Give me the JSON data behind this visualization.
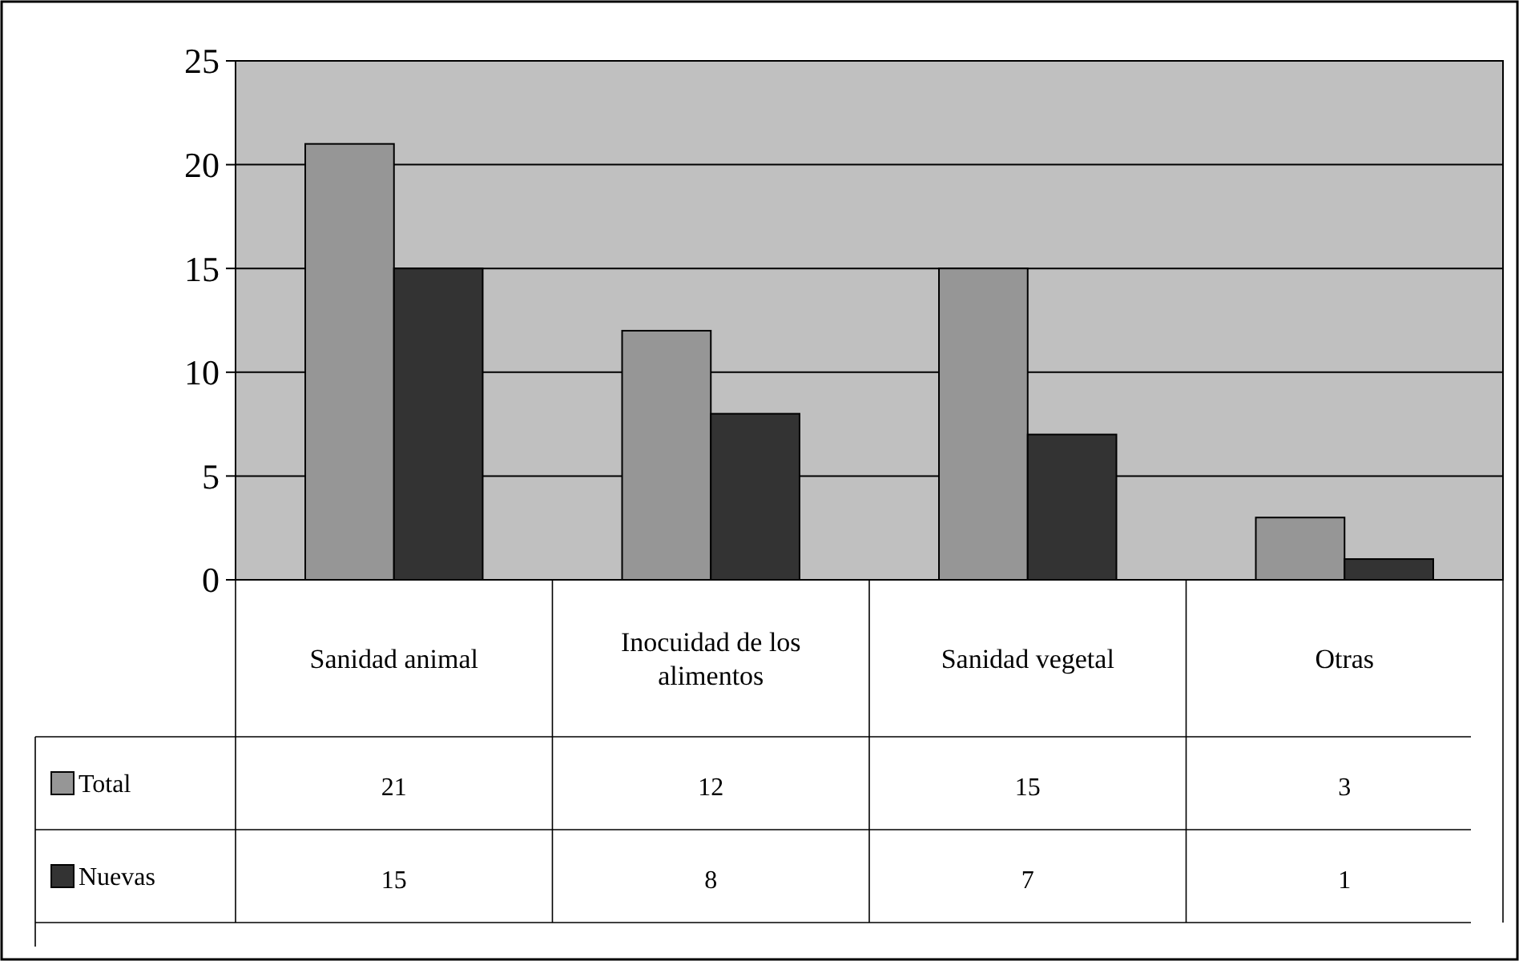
{
  "chart_data": {
    "type": "bar",
    "categories": [
      "Sanidad animal",
      "Inocuidad de los alimentos",
      "Sanidad vegetal",
      "Otras"
    ],
    "series": [
      {
        "name": "Total",
        "color": "#969696",
        "values": [
          21,
          12,
          15,
          3
        ]
      },
      {
        "name": "Nuevas",
        "color": "#333333",
        "values": [
          15,
          8,
          7,
          1
        ]
      }
    ],
    "ylim": [
      0,
      25
    ],
    "yticks": [
      0,
      5,
      10,
      15,
      20,
      25
    ],
    "grid": "y",
    "legend": "bottom left",
    "data_labels": true
  }
}
